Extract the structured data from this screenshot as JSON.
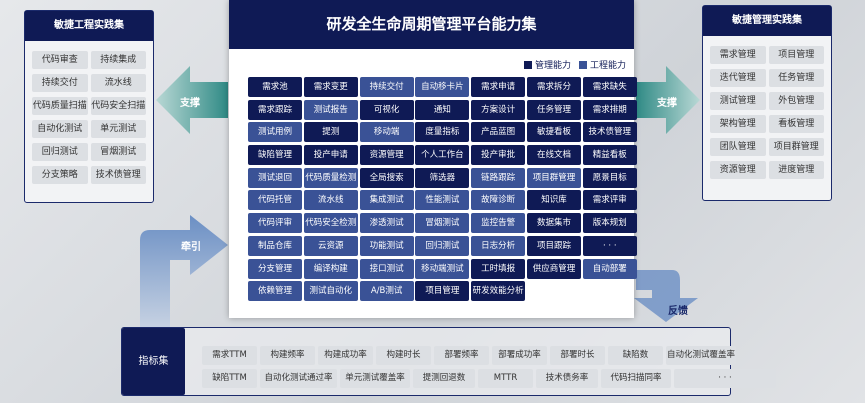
{
  "left_panel": {
    "title": "敏捷工程实践集",
    "items": [
      "代码审查",
      "持续集成",
      "持续交付",
      "流水线",
      "代码质量扫描",
      "代码安全扫描",
      "自动化测试",
      "单元测试",
      "回归测试",
      "冒烟测试",
      "分支策略",
      "技术债管理"
    ]
  },
  "right_panel": {
    "title": "敏捷管理实践集",
    "items": [
      "需求管理",
      "项目管理",
      "迭代管理",
      "任务管理",
      "测试管理",
      "外包管理",
      "架构管理",
      "看板管理",
      "团队管理",
      "项目群管理",
      "资源管理",
      "进度管理"
    ]
  },
  "center": {
    "title": "研发全生命周期管理平台能力集",
    "legend": [
      {
        "label": "管理能力",
        "color": "#0f1a55"
      },
      {
        "label": "工程能力",
        "color": "#3a5296"
      }
    ],
    "tiles": [
      [
        "需求池",
        "D"
      ],
      [
        "需求变更",
        "D"
      ],
      [
        "持续交付",
        "L"
      ],
      [
        "自动移卡片",
        "L"
      ],
      [
        "需求申请",
        "D"
      ],
      [
        "需求拆分",
        "D"
      ],
      [
        "需求缺失",
        "D"
      ],
      [
        "需求跟踪",
        "D"
      ],
      [
        "测试报告",
        "L"
      ],
      [
        "可视化",
        "D"
      ],
      [
        "通知",
        "D"
      ],
      [
        "方案设计",
        "D"
      ],
      [
        "任务管理",
        "D"
      ],
      [
        "需求排期",
        "D"
      ],
      [
        "测试用例",
        "L"
      ],
      [
        "提测",
        "D"
      ],
      [
        "移动端",
        "L"
      ],
      [
        "度量指标",
        "D"
      ],
      [
        "产品蓝图",
        "D"
      ],
      [
        "敏捷看板",
        "D"
      ],
      [
        "技术债管理",
        "D"
      ],
      [
        "缺陷管理",
        "D"
      ],
      [
        "投产申请",
        "D"
      ],
      [
        "资源管理",
        "D"
      ],
      [
        "个人工作台",
        "D"
      ],
      [
        "投产审批",
        "D"
      ],
      [
        "在线文档",
        "D"
      ],
      [
        "精益看板",
        "D"
      ],
      [
        "测试退回",
        "L"
      ],
      [
        "代码质量检测",
        "L"
      ],
      [
        "全局搜索",
        "D"
      ],
      [
        "筛选器",
        "D"
      ],
      [
        "链路跟踪",
        "L"
      ],
      [
        "项目群管理",
        "L"
      ],
      [
        "愿景目标",
        "D"
      ],
      [
        "代码托管",
        "L"
      ],
      [
        "流水线",
        "L"
      ],
      [
        "集成测试",
        "L"
      ],
      [
        "性能测试",
        "L"
      ],
      [
        "故障诊断",
        "L"
      ],
      [
        "知识库",
        "D"
      ],
      [
        "需求评审",
        "D"
      ],
      [
        "代码评审",
        "L"
      ],
      [
        "代码安全检测",
        "L"
      ],
      [
        "渗透测试",
        "L"
      ],
      [
        "冒烟测试",
        "L"
      ],
      [
        "监控告警",
        "L"
      ],
      [
        "数据集市",
        "D"
      ],
      [
        "版本规划",
        "D"
      ],
      [
        "制品仓库",
        "L"
      ],
      [
        "云资源",
        "L"
      ],
      [
        "功能测试",
        "L"
      ],
      [
        "回归测试",
        "L"
      ],
      [
        "日志分析",
        "L"
      ],
      [
        "项目跟踪",
        "D"
      ],
      [
        "· · ·",
        "D"
      ],
      [
        "分支管理",
        "L"
      ],
      [
        "编译构建",
        "L"
      ],
      [
        "接口测试",
        "L"
      ],
      [
        "移动端测试",
        "L"
      ],
      [
        "工时填报",
        "D"
      ],
      [
        "供应商管理",
        "D"
      ],
      [
        "自动部署",
        "L"
      ],
      [
        "依赖管理",
        "L"
      ],
      [
        "测试自动化",
        "L"
      ],
      [
        "A/B测试",
        "L"
      ],
      [
        "项目管理",
        "D"
      ],
      [
        "研发效能分析",
        "D"
      ]
    ]
  },
  "arrows": {
    "left": "支撑",
    "right": "支撑",
    "pull": "牵引",
    "feedback": "反馈"
  },
  "metrics": {
    "title": "指标集",
    "row1": [
      "需求TTM",
      "构建频率",
      "构建成功率",
      "构建时长",
      "部署频率",
      "部署成功率",
      "部署时长",
      "缺陷数",
      "自动化测试覆盖率"
    ],
    "row2": [
      "缺陷TTM",
      "自动化测试通过率",
      "单元测试覆盖率",
      "提测回退数",
      "MTTR",
      "技术债务率",
      "代码扫描同率",
      "· · ·"
    ]
  }
}
